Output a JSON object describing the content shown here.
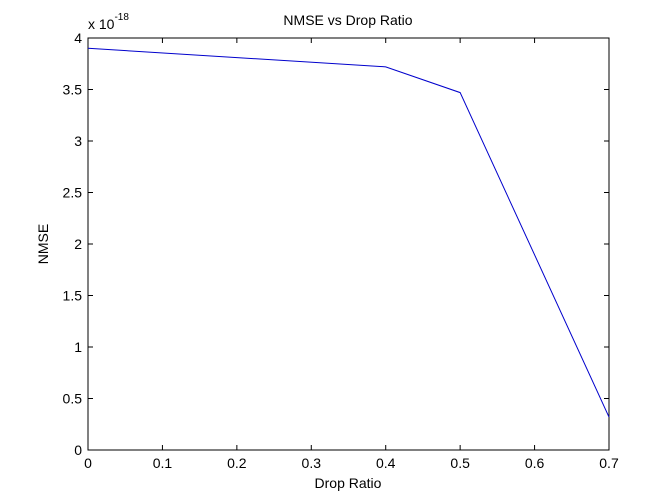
{
  "chart_data": {
    "type": "line",
    "title": "NMSE vs Drop Ratio",
    "xlabel": "Drop Ratio",
    "ylabel": "NMSE",
    "xlim": [
      0,
      0.7
    ],
    "ylim": [
      0,
      4
    ],
    "y_multiplier": {
      "base": "x 10",
      "exponent": "-18"
    },
    "xticks": [
      0,
      0.1,
      0.2,
      0.3,
      0.4,
      0.5,
      0.6,
      0.7
    ],
    "xtick_labels": [
      "0",
      "0.1",
      "0.2",
      "0.3",
      "0.4",
      "0.5",
      "0.6",
      "0.7"
    ],
    "yticks": [
      0,
      0.5,
      1,
      1.5,
      2,
      2.5,
      3,
      3.5,
      4
    ],
    "ytick_labels": [
      "0",
      "0.5",
      "1",
      "1.5",
      "2",
      "2.5",
      "3",
      "3.5",
      "4"
    ],
    "grid": false,
    "series": [
      {
        "color": "#0000cc",
        "x": [
          0,
          0.4,
          0.5,
          0.7
        ],
        "y": [
          3.9,
          3.72,
          3.47,
          0.32
        ]
      }
    ]
  }
}
